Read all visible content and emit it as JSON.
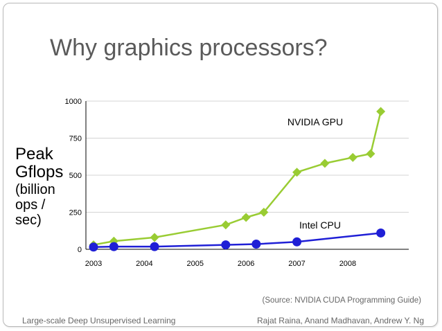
{
  "slide": {
    "title": "Why graphics processors?",
    "ylabel_line1": "Peak",
    "ylabel_line2": "Gflops",
    "ylabel_line3": "(billion ops / sec)",
    "source": "(Source: NVIDIA CUDA Programming Guide)",
    "footer_left": "Large-scale Deep Unsupervised Learning",
    "footer_right": "Rajat Raina, Anand Madhavan, Andrew Y. Ng"
  },
  "chart_data": {
    "type": "line",
    "title": "",
    "xlabel": "",
    "ylabel": "Peak Gflops (billion ops / sec)",
    "xlim": [
      2002.85,
      2009.2
    ],
    "ylim": [
      0,
      1000
    ],
    "x_ticks": [
      2003,
      2004,
      2005,
      2006,
      2007,
      2008
    ],
    "x_tick_labels": [
      "2003",
      "2004",
      "2005",
      "2006",
      "2007",
      "2008"
    ],
    "y_ticks": [
      0,
      250,
      500,
      750,
      1000
    ],
    "y_tick_labels": [
      "0",
      "250",
      "500",
      "750",
      "1000"
    ],
    "grid": true,
    "series": [
      {
        "name": "NVIDIA GPU",
        "color": "#99cc33",
        "marker": "diamond",
        "x": [
          2003.0,
          2003.4,
          2004.2,
          2005.6,
          2006.0,
          2006.35,
          2007.0,
          2007.55,
          2008.1,
          2008.45,
          2008.65
        ],
        "y": [
          30,
          55,
          80,
          165,
          215,
          250,
          520,
          580,
          620,
          645,
          930
        ]
      },
      {
        "name": "Intel CPU",
        "color": "#1f1fd6",
        "marker": "circle",
        "x": [
          2003.0,
          2003.4,
          2004.2,
          2005.6,
          2006.2,
          2007.0,
          2008.65
        ],
        "y": [
          15,
          18,
          18,
          30,
          35,
          50,
          110
        ]
      }
    ]
  }
}
